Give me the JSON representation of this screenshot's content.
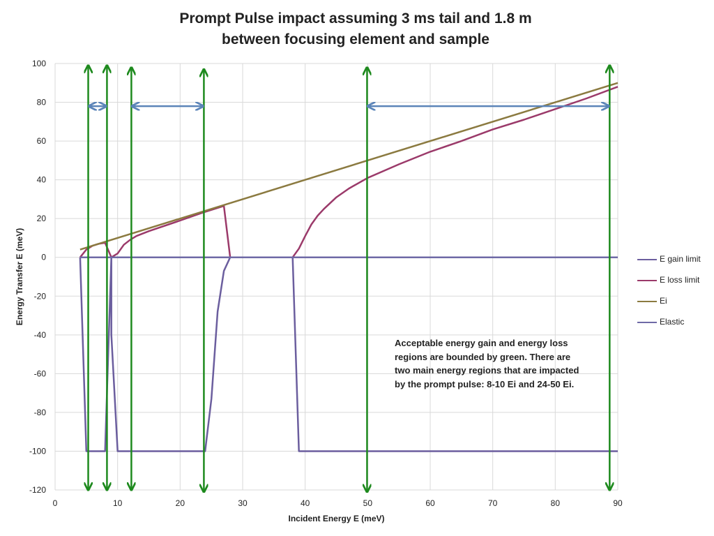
{
  "chart_data": {
    "type": "line",
    "title": "Prompt Pulse impact assuming 3 ms tail and 1.8 m between focusing element and sample",
    "title_lines": [
      "Prompt Pulse impact assuming 3 ms tail and 1.8 m",
      "between focusing element and sample"
    ],
    "xlabel": "Incident Energy E (meV)",
    "ylabel": "Energy Transfer E (meV)",
    "xlim": [
      0,
      90
    ],
    "ylim": [
      -120,
      100
    ],
    "x_ticks": [
      "0",
      "10",
      "20",
      "30",
      "40",
      "50",
      "60",
      "70",
      "80",
      "90"
    ],
    "y_ticks": [
      "100",
      "80",
      "60",
      "40",
      "20",
      "0",
      "-20",
      "-40",
      "-60",
      "-80",
      "-100",
      "-120"
    ],
    "grid": true,
    "legend_position": "right",
    "series": [
      {
        "name": "E gain limit",
        "color": "#6b5e9e",
        "points": [
          [
            4,
            0
          ],
          [
            5,
            -100
          ],
          [
            8,
            -100
          ],
          [
            9,
            0
          ],
          [
            9,
            -40
          ],
          [
            10,
            -100
          ],
          [
            24,
            -100
          ],
          [
            25,
            -73
          ],
          [
            26,
            -28
          ],
          [
            27,
            -7
          ],
          [
            28,
            0
          ],
          [
            38,
            0
          ],
          [
            39,
            -100
          ],
          [
            90,
            -100
          ]
        ]
      },
      {
        "name": "E loss limit",
        "color": "#9b3a6a",
        "points": [
          [
            4,
            0
          ],
          [
            5,
            4
          ],
          [
            6,
            6
          ],
          [
            7,
            7
          ],
          [
            8,
            7.5
          ],
          [
            9,
            0
          ],
          [
            10,
            2
          ],
          [
            11,
            6.5
          ],
          [
            12,
            9
          ],
          [
            13,
            11
          ],
          [
            15,
            13.5
          ],
          [
            20,
            19
          ],
          [
            24,
            23.5
          ],
          [
            27,
            26.5
          ],
          [
            28,
            0
          ],
          [
            38,
            0
          ],
          [
            39,
            4.5
          ],
          [
            40,
            11
          ],
          [
            41,
            17
          ],
          [
            42,
            21.5
          ],
          [
            43,
            25
          ],
          [
            45,
            31
          ],
          [
            47,
            35.5
          ],
          [
            50,
            41
          ],
          [
            55,
            48
          ],
          [
            60,
            54.5
          ],
          [
            65,
            60
          ],
          [
            70,
            66
          ],
          [
            75,
            71
          ],
          [
            80,
            76.5
          ],
          [
            85,
            82
          ],
          [
            90,
            88
          ]
        ]
      },
      {
        "name": "Ei",
        "color": "#8b7a40",
        "points": [
          [
            4,
            4
          ],
          [
            90,
            90
          ]
        ]
      },
      {
        "name": "Elastic",
        "color": "#6f6aa6",
        "points": [
          [
            4,
            0
          ],
          [
            90,
            0
          ]
        ]
      }
    ],
    "green_arrows_x": [
      5.3,
      8.3,
      12.2,
      23.8,
      49.9,
      88.7
    ],
    "green_arrow_top_y": [
      99,
      99,
      98,
      97,
      98,
      99
    ],
    "green_arrow_bottom_y": [
      -120,
      -120,
      -120,
      -121,
      -121,
      -120
    ],
    "blue_double_arrows": [
      {
        "x1": 5.3,
        "x2": 8.3,
        "y": 78
      },
      {
        "x1": 12.2,
        "x2": 23.8,
        "y": 78
      },
      {
        "x1": 49.9,
        "x2": 88.7,
        "y": 78
      }
    ],
    "arrow_colors": {
      "green": "#1e8a1e",
      "blue": "#5b84b8"
    },
    "annotation": "Acceptable energy gain and energy loss regions are bounded by green.  There are two main energy regions that are impacted by the prompt pulse: 8-10 Ei and 24-50 Ei."
  }
}
